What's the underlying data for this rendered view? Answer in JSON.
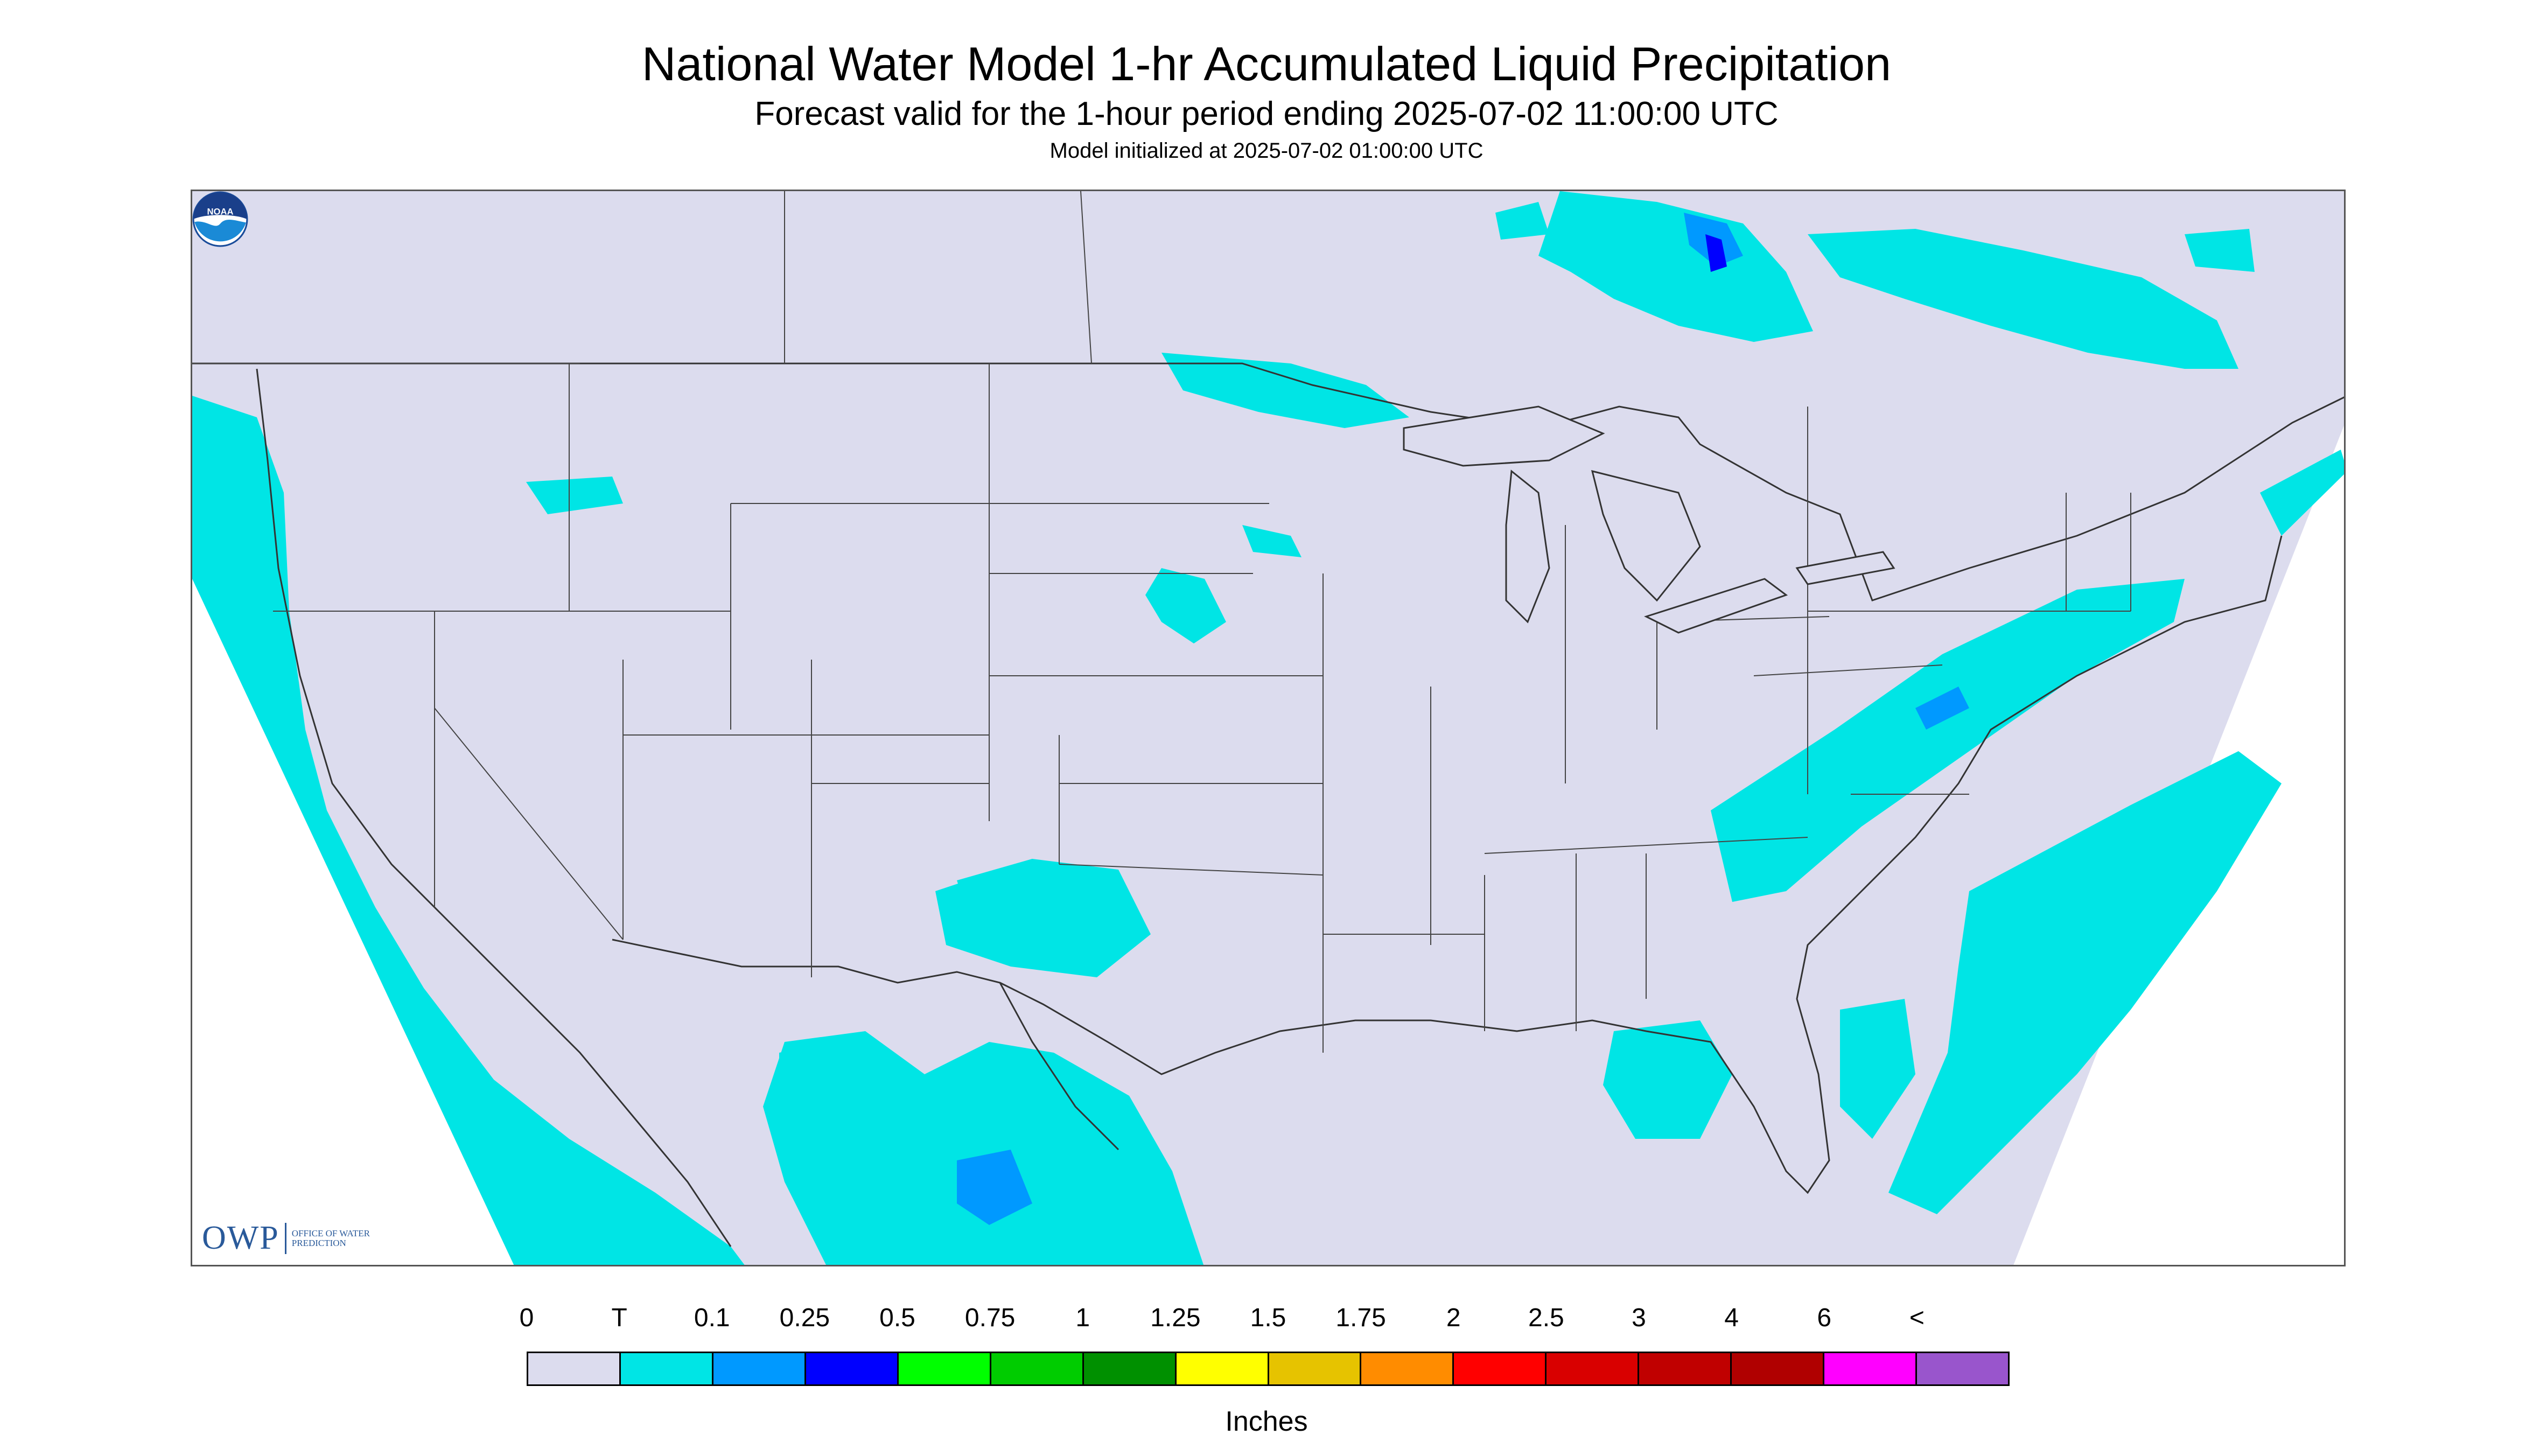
{
  "header": {
    "title": "National Water Model 1-hr Accumulated Liquid Precipitation",
    "subtitle": "Forecast valid for the 1-hour period ending 2025-07-02 11:00:00 UTC",
    "init": "Model initialized at 2025-07-02 01:00:00 UTC"
  },
  "logos": {
    "owp_mark": "OWP",
    "owp_text": "OFFICE OF WATER PREDICTION",
    "noaa": "NOAA"
  },
  "colors": {
    "background": "#dcdcee",
    "trace": "#00e5e5",
    "light_blue": "#0099ff",
    "blue": "#0000ff",
    "land_line": "#333333"
  },
  "legend": {
    "labels": [
      "0",
      "T",
      "0.1",
      "0.25",
      "0.5",
      "0.75",
      "1",
      "1.25",
      "1.5",
      "1.75",
      "2",
      "2.5",
      "3",
      "4",
      "6",
      "<"
    ],
    "colors": [
      "#dcdcee",
      "#00e5e5",
      "#0099ff",
      "#0000ff",
      "#00ff00",
      "#00cc00",
      "#009000",
      "#ffff00",
      "#e6c300",
      "#ff8c00",
      "#ff0000",
      "#d90000",
      "#c00000",
      "#b00000",
      "#ff00ff",
      "#9955cc"
    ],
    "units": "Inches"
  }
}
